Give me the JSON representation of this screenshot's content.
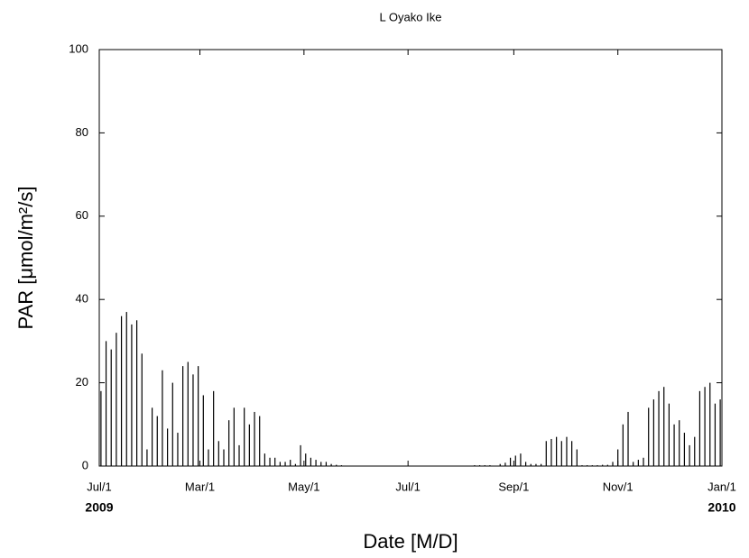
{
  "chart_data": {
    "type": "bar",
    "title": "L Oyako Ike",
    "x_label": "Date [M/D]",
    "y_label": "PAR [μmol/m²/s]",
    "year_labels": [
      "2009",
      "2010"
    ],
    "color": "#000000",
    "xlim": [
      0,
      365
    ],
    "ylim": [
      0,
      100
    ],
    "xticks": [
      {
        "value": 0,
        "label": "Jul/1"
      },
      {
        "value": 59,
        "label": "Mar/1"
      },
      {
        "value": 120,
        "label": "May/1"
      },
      {
        "value": 181,
        "label": "Jul/1"
      },
      {
        "value": 243,
        "label": "Sep/1"
      },
      {
        "value": 304,
        "label": "Nov/1"
      },
      {
        "value": 365,
        "label": "Jan/1"
      }
    ],
    "yticks": [
      0,
      20,
      40,
      60,
      80,
      100
    ],
    "x": [
      1,
      4,
      7,
      10,
      13,
      16,
      19,
      22,
      25,
      28,
      31,
      34,
      37,
      40,
      43,
      46,
      49,
      52,
      55,
      58,
      61,
      64,
      67,
      70,
      73,
      76,
      79,
      82,
      85,
      88,
      91,
      94,
      97,
      100,
      103,
      106,
      109,
      112,
      115,
      118,
      121,
      124,
      127,
      130,
      133,
      136,
      139,
      142,
      145,
      148,
      151,
      154,
      157,
      160,
      163,
      166,
      169,
      172,
      175,
      178,
      181,
      184,
      187,
      190,
      193,
      196,
      199,
      202,
      205,
      208,
      211,
      214,
      217,
      220,
      223,
      226,
      229,
      232,
      235,
      238,
      241,
      244,
      247,
      250,
      253,
      256,
      259,
      262,
      265,
      268,
      271,
      274,
      277,
      280,
      283,
      286,
      289,
      292,
      295,
      298,
      301,
      304,
      307,
      310,
      313,
      316,
      319,
      322,
      325,
      328,
      331,
      334,
      337,
      340,
      343,
      346,
      349,
      352,
      355,
      358,
      361,
      364
    ],
    "values": [
      18,
      30,
      28,
      32,
      36,
      37,
      34,
      35,
      27,
      4,
      14,
      12,
      23,
      9,
      20,
      8,
      24,
      25,
      22,
      24,
      17,
      4,
      18,
      6,
      4,
      11,
      14,
      5,
      14,
      10,
      13,
      12,
      3,
      2,
      2,
      1,
      1,
      1.5,
      0.5,
      5,
      3,
      2,
      1.5,
      1,
      1,
      0.5,
      0.3,
      0.2,
      0.1,
      0,
      0,
      0,
      0,
      0,
      0,
      0,
      0,
      0,
      0,
      0,
      0,
      0,
      0,
      0,
      0,
      0,
      0,
      0,
      0,
      0,
      0,
      0,
      0,
      0.2,
      0.2,
      0.2,
      0.2,
      0,
      0.5,
      0.8,
      2,
      2.5,
      3,
      1,
      0.5,
      0.5,
      0.5,
      6,
      6.5,
      7,
      6,
      7,
      6,
      4,
      0.2,
      0.2,
      0.2,
      0.2,
      0.3,
      0.3,
      1,
      4,
      10,
      13,
      1,
      1.5,
      2,
      14,
      16,
      18,
      19,
      15,
      10,
      11,
      8,
      5,
      7,
      18,
      19,
      20,
      15,
      16
    ]
  }
}
